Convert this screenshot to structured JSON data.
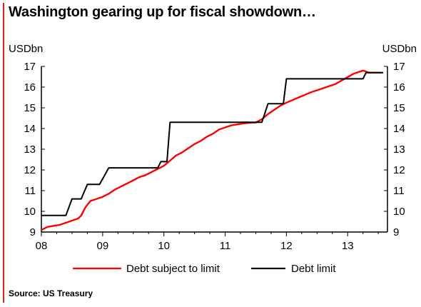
{
  "chart_data": {
    "type": "line",
    "title": "Washington gearing up for fiscal showdown…",
    "ylabel_left": "USDbn",
    "ylabel_right": "USDbn",
    "source": "Source: US Treasury",
    "ylim": [
      9,
      17
    ],
    "xlim": [
      2008.0,
      2013.65
    ],
    "y_ticks": [
      "9",
      "10",
      "11",
      "12",
      "13",
      "14",
      "15",
      "16",
      "17"
    ],
    "x_ticks": [
      {
        "label": "08",
        "value": 2008.0
      },
      {
        "label": "09",
        "value": 2009.0
      },
      {
        "label": "10",
        "value": 2010.0
      },
      {
        "label": "11",
        "value": 2011.0
      },
      {
        "label": "12",
        "value": 2012.0
      },
      {
        "label": "13",
        "value": 2013.0
      }
    ],
    "legend_position": "bottom",
    "series": [
      {
        "name": "Debt subject to limit",
        "color": "#ff0000",
        "points": [
          [
            2008.0,
            9.1
          ],
          [
            2008.1,
            9.25
          ],
          [
            2008.2,
            9.3
          ],
          [
            2008.3,
            9.35
          ],
          [
            2008.4,
            9.45
          ],
          [
            2008.5,
            9.55
          ],
          [
            2008.6,
            9.65
          ],
          [
            2008.65,
            9.8
          ],
          [
            2008.72,
            10.2
          ],
          [
            2008.8,
            10.5
          ],
          [
            2008.9,
            10.6
          ],
          [
            2009.0,
            10.7
          ],
          [
            2009.1,
            10.85
          ],
          [
            2009.2,
            11.05
          ],
          [
            2009.3,
            11.2
          ],
          [
            2009.4,
            11.35
          ],
          [
            2009.5,
            11.5
          ],
          [
            2009.6,
            11.65
          ],
          [
            2009.7,
            11.75
          ],
          [
            2009.8,
            11.9
          ],
          [
            2009.9,
            12.05
          ],
          [
            2010.0,
            12.2
          ],
          [
            2010.1,
            12.45
          ],
          [
            2010.2,
            12.7
          ],
          [
            2010.3,
            12.85
          ],
          [
            2010.4,
            13.05
          ],
          [
            2010.5,
            13.25
          ],
          [
            2010.6,
            13.4
          ],
          [
            2010.7,
            13.6
          ],
          [
            2010.8,
            13.75
          ],
          [
            2010.9,
            13.95
          ],
          [
            2011.0,
            14.05
          ],
          [
            2011.1,
            14.15
          ],
          [
            2011.2,
            14.2
          ],
          [
            2011.3,
            14.25
          ],
          [
            2011.4,
            14.28
          ],
          [
            2011.5,
            14.29
          ],
          [
            2011.6,
            14.45
          ],
          [
            2011.7,
            14.7
          ],
          [
            2011.8,
            14.9
          ],
          [
            2011.9,
            15.1
          ],
          [
            2012.0,
            15.25
          ],
          [
            2012.2,
            15.5
          ],
          [
            2012.4,
            15.75
          ],
          [
            2012.6,
            15.95
          ],
          [
            2012.8,
            16.15
          ],
          [
            2012.95,
            16.4
          ],
          [
            2013.1,
            16.65
          ],
          [
            2013.25,
            16.8
          ],
          [
            2013.35,
            16.7
          ],
          [
            2013.45,
            16.7
          ],
          [
            2013.55,
            16.7
          ]
        ]
      },
      {
        "name": "Debt limit",
        "color": "#000000",
        "step": true,
        "points": [
          [
            2008.0,
            9.8
          ],
          [
            2008.4,
            9.8
          ],
          [
            2008.5,
            10.6
          ],
          [
            2008.65,
            10.6
          ],
          [
            2008.75,
            11.3
          ],
          [
            2008.95,
            11.3
          ],
          [
            2009.1,
            12.1
          ],
          [
            2009.9,
            12.1
          ],
          [
            2009.95,
            12.4
          ],
          [
            2010.05,
            12.4
          ],
          [
            2010.1,
            14.3
          ],
          [
            2011.6,
            14.3
          ],
          [
            2011.7,
            15.2
          ],
          [
            2011.95,
            15.2
          ],
          [
            2012.0,
            16.4
          ],
          [
            2013.25,
            16.4
          ],
          [
            2013.3,
            16.7
          ],
          [
            2013.58,
            16.7
          ]
        ]
      }
    ]
  }
}
